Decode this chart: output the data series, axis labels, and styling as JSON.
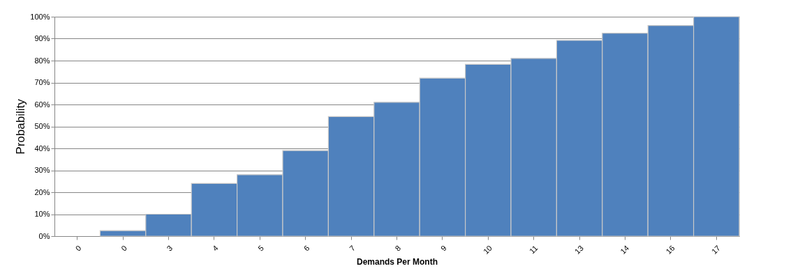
{
  "chart_data": {
    "type": "bar",
    "xlabel": "Demands Per Month",
    "ylabel": "Probability",
    "categories": [
      "0",
      "0",
      "3",
      "4",
      "5",
      "6",
      "7",
      "8",
      "9",
      "10",
      "11",
      "13",
      "14",
      "16",
      "17"
    ],
    "values": [
      0,
      2.5,
      10,
      24,
      28,
      39,
      54.5,
      61,
      72,
      78.3,
      81,
      89.2,
      92.5,
      96,
      100
    ],
    "color": "#4f81bd",
    "ylim": [
      0,
      100
    ],
    "yticks": [
      {
        "value": 0,
        "label": "0%"
      },
      {
        "value": 10,
        "label": "10%"
      },
      {
        "value": 20,
        "label": "20%"
      },
      {
        "value": 30,
        "label": "30%"
      },
      {
        "value": 40,
        "label": "40%"
      },
      {
        "value": 50,
        "label": "50%"
      },
      {
        "value": 60,
        "label": "60%"
      },
      {
        "value": 70,
        "label": "70%"
      },
      {
        "value": 80,
        "label": "80%"
      },
      {
        "value": 90,
        "label": "90%"
      },
      {
        "value": 100,
        "label": "100%"
      }
    ],
    "grid": "y"
  }
}
